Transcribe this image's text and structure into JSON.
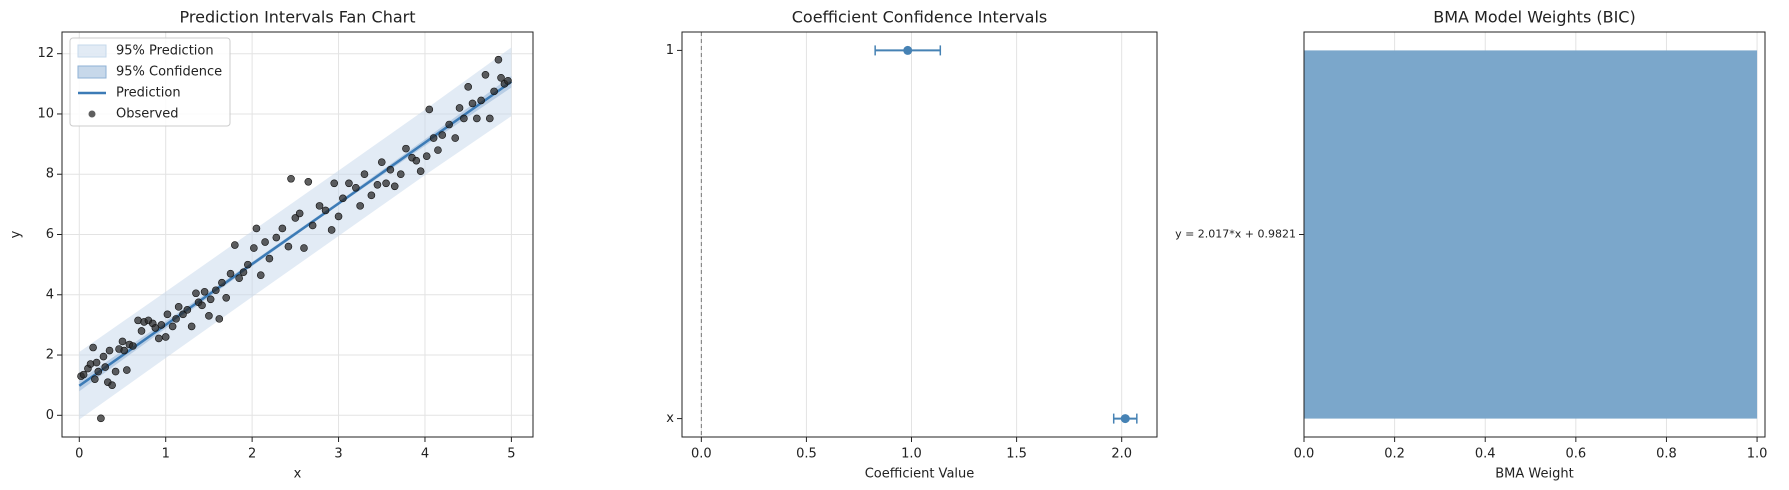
{
  "chart_data": [
    {
      "type": "fan",
      "title": "Prediction Intervals Fan Chart",
      "xlabel": "x",
      "ylabel": "y",
      "xlim": [
        -0.2,
        5.25
      ],
      "ylim": [
        -0.72,
        12.72
      ],
      "xticks": [
        0,
        1,
        2,
        3,
        4,
        5
      ],
      "yticks": [
        0,
        2,
        4,
        6,
        8,
        10,
        12
      ],
      "grid": true,
      "legend": "upper left",
      "series": [
        {
          "name": "95% Prediction",
          "kind": "band",
          "color": "#c6d8eb",
          "x": [
            0,
            1,
            2,
            3,
            4,
            5
          ],
          "lower": [
            -0.14,
            1.9,
            3.93,
            5.95,
            7.97,
            9.93
          ],
          "upper": [
            2.1,
            4.1,
            6.11,
            8.12,
            10.14,
            12.21
          ]
        },
        {
          "name": "95% Confidence",
          "kind": "band",
          "color": "#8fb2d6",
          "x": [
            0,
            1,
            2,
            3,
            4,
            5
          ],
          "lower": [
            0.8,
            2.88,
            4.95,
            6.98,
            8.94,
            10.88
          ],
          "upper": [
            1.16,
            3.12,
            5.09,
            7.09,
            9.16,
            11.26
          ]
        },
        {
          "name": "Prediction",
          "kind": "line",
          "color": "#3c7bb6",
          "x": [
            0,
            1,
            2,
            3,
            4,
            5
          ],
          "values": [
            0.98,
            3.0,
            5.02,
            7.03,
            9.05,
            11.07
          ]
        },
        {
          "name": "Observed",
          "kind": "scatter",
          "color": "#2a2a2a",
          "x": [
            0.02,
            0.05,
            0.1,
            0.13,
            0.16,
            0.18,
            0.2,
            0.22,
            0.25,
            0.28,
            0.3,
            0.33,
            0.35,
            0.38,
            0.42,
            0.46,
            0.5,
            0.52,
            0.55,
            0.58,
            0.62,
            0.68,
            0.72,
            0.75,
            0.8,
            0.85,
            0.88,
            0.92,
            0.95,
            1.0,
            1.02,
            1.08,
            1.12,
            1.15,
            1.2,
            1.25,
            1.3,
            1.35,
            1.38,
            1.42,
            1.45,
            1.5,
            1.52,
            1.58,
            1.62,
            1.65,
            1.7,
            1.75,
            1.8,
            1.85,
            1.9,
            1.95,
            2.02,
            2.05,
            2.1,
            2.15,
            2.2,
            2.28,
            2.35,
            2.42,
            2.45,
            2.5,
            2.55,
            2.6,
            2.65,
            2.7,
            2.78,
            2.85,
            2.92,
            2.95,
            3.0,
            3.05,
            3.12,
            3.2,
            3.25,
            3.3,
            3.38,
            3.45,
            3.5,
            3.55,
            3.6,
            3.65,
            3.72,
            3.78,
            3.85,
            3.9,
            3.95,
            4.02,
            4.05,
            4.1,
            4.15,
            4.2,
            4.28,
            4.35,
            4.4,
            4.45,
            4.5,
            4.55,
            4.6,
            4.65,
            4.7,
            4.75,
            4.8,
            4.85,
            4.88,
            4.92,
            4.96
          ],
          "values": [
            1.3,
            1.35,
            1.55,
            1.7,
            2.25,
            1.2,
            1.75,
            1.45,
            -0.1,
            1.95,
            1.6,
            1.1,
            2.15,
            1.0,
            1.45,
            2.2,
            2.45,
            2.15,
            1.5,
            2.35,
            2.3,
            3.15,
            2.8,
            3.1,
            3.15,
            3.05,
            2.9,
            2.55,
            3.0,
            2.6,
            3.35,
            2.95,
            3.2,
            3.6,
            3.35,
            3.5,
            2.95,
            4.05,
            3.75,
            3.65,
            4.1,
            3.3,
            3.85,
            4.15,
            3.2,
            4.4,
            3.9,
            4.7,
            5.65,
            4.55,
            4.75,
            5.0,
            5.55,
            6.2,
            4.65,
            5.75,
            5.2,
            5.9,
            6.2,
            5.6,
            7.85,
            6.55,
            6.7,
            5.55,
            7.75,
            6.3,
            6.95,
            6.8,
            6.15,
            7.7,
            6.6,
            7.2,
            7.7,
            7.55,
            6.95,
            8.0,
            7.3,
            7.65,
            8.4,
            7.7,
            8.15,
            7.6,
            8.0,
            8.85,
            8.55,
            8.45,
            8.1,
            8.6,
            10.15,
            9.2,
            8.8,
            9.3,
            9.65,
            9.2,
            10.2,
            9.85,
            10.9,
            10.35,
            9.85,
            10.45,
            11.3,
            9.85,
            10.75,
            11.8,
            11.2,
            11.0,
            11.1
          ]
        }
      ]
    },
    {
      "type": "errorbar",
      "title": "Coefficient Confidence Intervals",
      "xlabel": "Coefficient Value",
      "categories": [
        "1",
        "x"
      ],
      "values": [
        0.982,
        2.017
      ],
      "errors": [
        0.155,
        0.055
      ],
      "color": "#4682b4",
      "xlim": [
        -0.092,
        2.168
      ],
      "xticks": [
        {
          "value": 0,
          "label": "0.0"
        },
        {
          "value": 0.5,
          "label": "0.5"
        },
        {
          "value": 1,
          "label": "1.0"
        },
        {
          "value": 1.5,
          "label": "1.5"
        },
        {
          "value": 2,
          "label": "2.0"
        }
      ],
      "refline": 0,
      "grid": true
    },
    {
      "type": "barh",
      "title": "BMA Model Weights (BIC)",
      "xlabel": "BMA Weight",
      "categories": [
        "y = 2.017*x + 0.9821"
      ],
      "values": [
        1.0
      ],
      "color": "#7ba7cb",
      "xlim": [
        0,
        1.0175
      ],
      "xticks": [
        {
          "value": 0,
          "label": "0.0"
        },
        {
          "value": 0.2,
          "label": "0.2"
        },
        {
          "value": 0.4,
          "label": "0.4"
        },
        {
          "value": 0.6,
          "label": "0.6"
        },
        {
          "value": 0.8,
          "label": "0.8"
        },
        {
          "value": 1,
          "label": "1.0"
        }
      ],
      "grid": true
    }
  ]
}
